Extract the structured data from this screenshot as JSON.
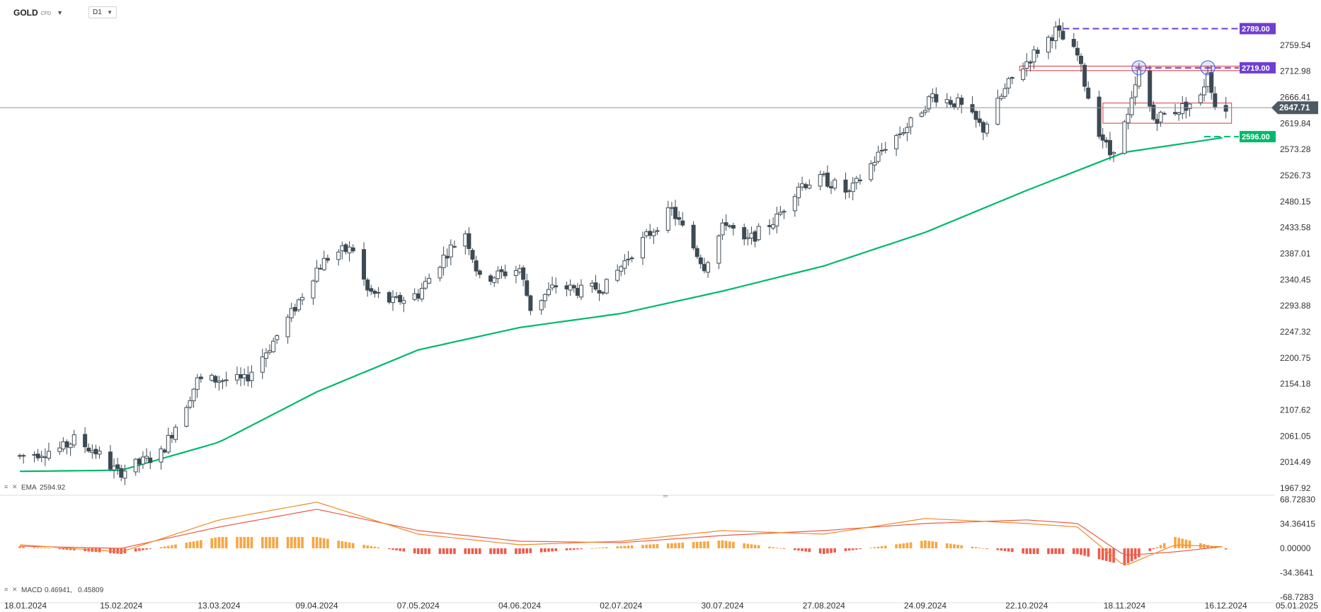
{
  "toolbar": {
    "symbol": "GOLD",
    "instrument_type": "CFD",
    "timeframe": "D1"
  },
  "indicators": {
    "ema_label": "EMA",
    "ema_value": "2594.92",
    "macd_label": "MACD",
    "macd_value1": "0.46941,",
    "macd_value2": "0.45809"
  },
  "colors": {
    "candle": "#3d4a54",
    "ema": "#00b96b",
    "purple_level": "#6f3fd1",
    "green_level": "#00b96b",
    "red_box": "#e0373f",
    "circle": "#3b5bdb",
    "macd_line": "#f08a24",
    "signal_line": "#ee5a4a",
    "hist_pos": "#f7a642",
    "hist_neg": "#ee5a4a",
    "last_price_bg": "#4d5a63"
  },
  "chart_data": {
    "type": "candlestick",
    "symbol": "GOLD",
    "timeframe": "D1",
    "y_ticks": [
      "2759.54",
      "2712.98",
      "2666.41",
      "2619.84",
      "2573.28",
      "2526.73",
      "2480.15",
      "2433.58",
      "2387.01",
      "2340.45",
      "2293.88",
      "2247.32",
      "2200.75",
      "2154.18",
      "2107.62",
      "2061.05",
      "2014.49",
      "1967.92"
    ],
    "ylim": [
      1967.92,
      2806
    ],
    "x_ticks": [
      "18.01.2024",
      "15.02.2024",
      "13.03.2024",
      "09.04.2024",
      "07.05.2024",
      "04.06.2024",
      "02.07.2024",
      "30.07.2024",
      "27.08.2024",
      "24.09.2024",
      "22.10.2024",
      "18.11.2024",
      "16.12.2024",
      "05.01.2025"
    ],
    "last_price": 2647.71,
    "levels": [
      {
        "value": 2789.0,
        "label": "2789.00",
        "style": "dashed",
        "color": "#6f3fd1"
      },
      {
        "value": 2719.0,
        "label": "2719.00",
        "style": "dashed",
        "color": "#6f3fd1"
      },
      {
        "value": 2596.0,
        "label": "2596.00",
        "style": "dashed",
        "color": "#00b96b"
      }
    ],
    "zones": [
      {
        "x_from": "22.10.2024",
        "x_to": "05.01.2025",
        "y_from": 2714,
        "y_to": 2722
      },
      {
        "x_from": "14.11.2024",
        "x_to": "16.12.2024",
        "y_from": 2620,
        "y_to": 2656
      }
    ],
    "close_path": [
      [
        "18.01.2024",
        2025
      ],
      [
        "30.01.2024",
        2040
      ],
      [
        "02.02.2024",
        2055
      ],
      [
        "08.02.2024",
        2033
      ],
      [
        "14.02.2024",
        1995
      ],
      [
        "26.02.2024",
        2030
      ],
      [
        "01.03.2024",
        2080
      ],
      [
        "07.03.2024",
        2160
      ],
      [
        "13.03.2024",
        2162
      ],
      [
        "20.03.2024",
        2160
      ],
      [
        "28.03.2024",
        2230
      ],
      [
        "02.04.2024",
        2280
      ],
      [
        "09.04.2024",
        2360
      ],
      [
        "12.04.2024",
        2380
      ],
      [
        "15.04.2024",
        2390
      ],
      [
        "19.04.2024",
        2395
      ],
      [
        "23.04.2024",
        2320
      ],
      [
        "30.04.2024",
        2300
      ],
      [
        "07.05.2024",
        2315
      ],
      [
        "15.05.2024",
        2390
      ],
      [
        "20.05.2024",
        2425
      ],
      [
        "24.05.2024",
        2340
      ],
      [
        "04.06.2024",
        2360
      ],
      [
        "07.06.2024",
        2290
      ],
      [
        "14.06.2024",
        2330
      ],
      [
        "21.06.2024",
        2320
      ],
      [
        "28.06.2024",
        2330
      ],
      [
        "05.07.2024",
        2390
      ],
      [
        "16.07.2024",
        2465
      ],
      [
        "25.07.2024",
        2365
      ],
      [
        "31.07.2024",
        2445
      ],
      [
        "05.08.2024",
        2405
      ],
      [
        "14.08.2024",
        2450
      ],
      [
        "20.08.2024",
        2510
      ],
      [
        "27.08.2024",
        2520
      ],
      [
        "03.09.2024",
        2495
      ],
      [
        "13.09.2024",
        2580
      ],
      [
        "20.09.2024",
        2620
      ],
      [
        "26.09.2024",
        2670
      ],
      [
        "03.10.2024",
        2655
      ],
      [
        "10.10.2024",
        2610
      ],
      [
        "17.10.2024",
        2690
      ],
      [
        "22.10.2024",
        2730
      ],
      [
        "30.10.2024",
        2785
      ],
      [
        "05.11.2024",
        2740
      ],
      [
        "10.11.2024",
        2620
      ],
      [
        "14.11.2024",
        2565
      ],
      [
        "19.11.2024",
        2630
      ],
      [
        "22.11.2024",
        2710
      ],
      [
        "26.11.2024",
        2628
      ],
      [
        "03.12.2024",
        2645
      ],
      [
        "09.12.2024",
        2665
      ],
      [
        "11.12.2024",
        2715
      ],
      [
        "13.12.2024",
        2652
      ],
      [
        "16.12.2024",
        2648
      ]
    ],
    "ema_path": [
      [
        "18.01.2024",
        1998
      ],
      [
        "15.02.2024",
        2000
      ],
      [
        "13.03.2024",
        2050
      ],
      [
        "09.04.2024",
        2140
      ],
      [
        "07.05.2024",
        2215
      ],
      [
        "04.06.2024",
        2255
      ],
      [
        "02.07.2024",
        2280
      ],
      [
        "30.07.2024",
        2320
      ],
      [
        "27.08.2024",
        2365
      ],
      [
        "24.09.2024",
        2425
      ],
      [
        "22.10.2024",
        2500
      ],
      [
        "18.11.2024",
        2568
      ],
      [
        "16.12.2024",
        2595
      ]
    ],
    "macd": {
      "y_ticks": [
        "68.72830",
        "34.36415",
        "0.00000",
        "-34.3641",
        "-68.7283"
      ],
      "ylim": [
        -68.7283,
        68.7283
      ],
      "macd_path": [
        [
          "18.01.2024",
          5
        ],
        [
          "15.02.2024",
          -5
        ],
        [
          "13.03.2024",
          40
        ],
        [
          "09.04.2024",
          65
        ],
        [
          "07.05.2024",
          20
        ],
        [
          "04.06.2024",
          5
        ],
        [
          "02.07.2024",
          10
        ],
        [
          "30.07.2024",
          25
        ],
        [
          "27.08.2024",
          20
        ],
        [
          "24.09.2024",
          42
        ],
        [
          "22.10.2024",
          35
        ],
        [
          "05.11.2024",
          30
        ],
        [
          "18.11.2024",
          -25
        ],
        [
          "02.12.2024",
          5
        ],
        [
          "16.12.2024",
          2
        ]
      ],
      "signal_path": [
        [
          "18.01.2024",
          3
        ],
        [
          "15.02.2024",
          0
        ],
        [
          "13.03.2024",
          30
        ],
        [
          "09.04.2024",
          55
        ],
        [
          "07.05.2024",
          25
        ],
        [
          "04.06.2024",
          10
        ],
        [
          "02.07.2024",
          8
        ],
        [
          "30.07.2024",
          18
        ],
        [
          "27.08.2024",
          25
        ],
        [
          "24.09.2024",
          35
        ],
        [
          "22.10.2024",
          40
        ],
        [
          "05.11.2024",
          35
        ],
        [
          "18.11.2024",
          -10
        ],
        [
          "02.12.2024",
          -5
        ],
        [
          "16.12.2024",
          3
        ]
      ]
    }
  }
}
